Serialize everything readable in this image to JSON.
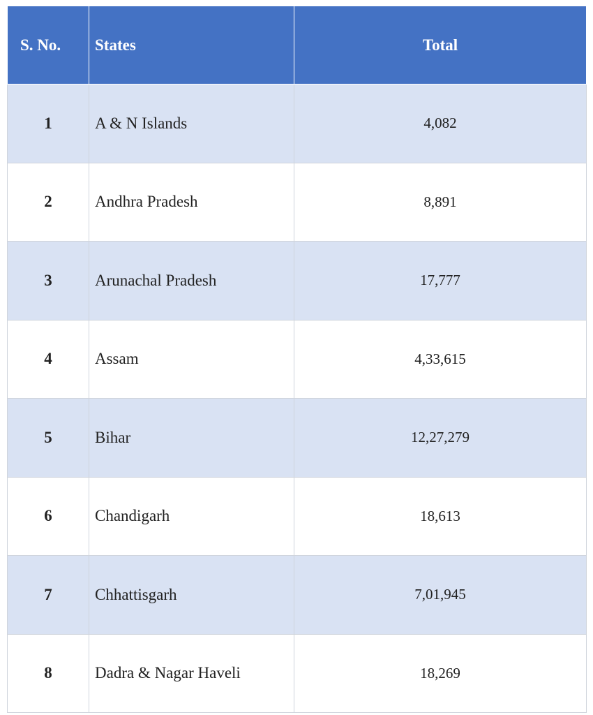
{
  "table": {
    "header": [
      "S. No.",
      "States",
      "Total"
    ],
    "rows": [
      [
        "1",
        "A & N Islands",
        "4,082"
      ],
      [
        "2",
        "Andhra Pradesh",
        "8,891"
      ],
      [
        "3",
        "Arunachal Pradesh",
        "17,777"
      ],
      [
        "4",
        "Assam",
        "4,33,615"
      ],
      [
        "5",
        "Bihar",
        "12,27,279"
      ],
      [
        "6",
        "Chandigarh",
        "18,613"
      ],
      [
        "7",
        "Chhattisgarh",
        "7,01,945"
      ],
      [
        "8",
        "Dadra & Nagar Haveli",
        "18,269"
      ]
    ]
  }
}
